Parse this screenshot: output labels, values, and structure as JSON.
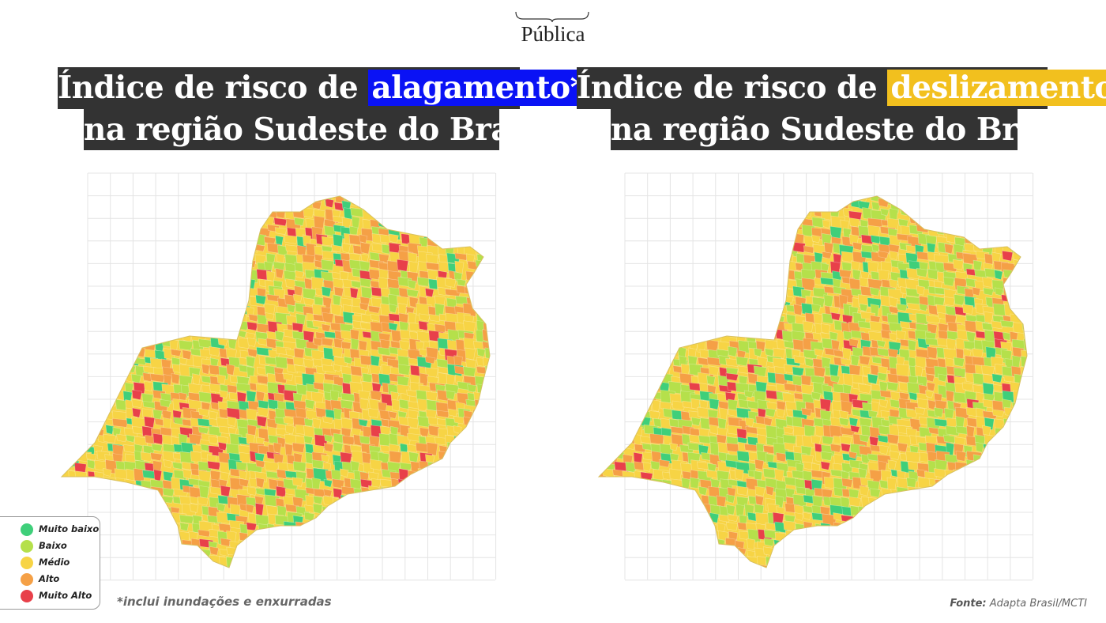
{
  "logo": "Pública",
  "maps": [
    {
      "title_line1": "Índice de risco de",
      "highlight": "alagamento*",
      "highlight_color": "#0a12f5",
      "title_line2": "na região Sudeste do Brasil"
    },
    {
      "title_line1": "Índice de risco de",
      "highlight": "deslizamento",
      "highlight_color": "#f2c01e",
      "title_line2": "na região Sudeste do Brasil"
    }
  ],
  "legend": [
    {
      "label": "Muito baixo",
      "color": "#3fcf7a"
    },
    {
      "label": "Baixo",
      "color": "#b5e04b"
    },
    {
      "label": "Médio",
      "color": "#f7d445"
    },
    {
      "label": "Alto",
      "color": "#f5a046"
    },
    {
      "label": "Muito Alto",
      "color": "#e8404a"
    }
  ],
  "footnote": "*inclui inundações e enxurradas",
  "source": {
    "label": "Fonte:",
    "text": "Adapta Brasil/MCTI"
  }
}
